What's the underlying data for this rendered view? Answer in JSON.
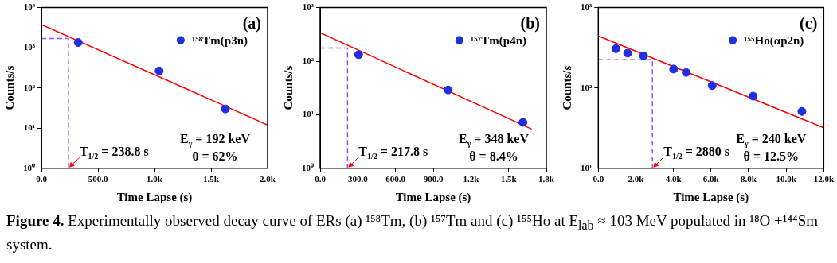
{
  "chart_data": [
    {
      "type": "scatter",
      "title": "(a)",
      "xlabel": "Time Lapse (s)",
      "ylabel": "Counts/s",
      "log": "y",
      "grid": false,
      "legend": "top right",
      "xlim": [
        0,
        2000
      ],
      "xticks": [
        {
          "value": 0,
          "label": "0.0"
        },
        {
          "value": 500,
          "label": "500.0"
        },
        {
          "value": 1000,
          "label": "1.0k"
        },
        {
          "value": 1500,
          "label": "1.5k"
        },
        {
          "value": 2000,
          "label": "2.0k"
        }
      ],
      "ylim": [
        1,
        10000
      ],
      "yticks": [
        {
          "value": 1,
          "label": "10⁰"
        },
        {
          "value": 10,
          "label": "10¹"
        },
        {
          "value": 100,
          "label": "10²"
        },
        {
          "value": 1000,
          "label": "10³"
        },
        {
          "value": 10000,
          "label": "10⁴"
        }
      ],
      "series": [
        {
          "type": "scatter",
          "name": "¹⁵⁸Tm(p3n)",
          "color": "#1f2fe0",
          "marker": "circle",
          "x": [
            325,
            1041,
            1627
          ],
          "values": [
            1350,
            265,
            30
          ]
        },
        {
          "type": "line",
          "color": "#ff0000",
          "line_style": "solid",
          "x": [
            0,
            2000
          ],
          "values": [
            3800,
            12
          ]
        },
        {
          "type": "line",
          "color": "#9b4dff",
          "line_style": "dashed",
          "x": [
            0,
            238.8,
            238.8
          ],
          "values": [
            1700,
            1700,
            1
          ]
        }
      ],
      "annotations": [
        {
          "text": "T$_{1/2}$ = 238.8 s",
          "x": 238.8,
          "y": 1
        },
        "E$_{γ}$ = 192 keV",
        "0 = 62%"
      ]
    },
    {
      "type": "scatter",
      "title": "(b)",
      "xlabel": "Time Lapse (s)",
      "ylabel": "Counts/s",
      "log": "y",
      "grid": false,
      "legend": "top right",
      "xlim": [
        0,
        1800
      ],
      "xticks": [
        {
          "value": 0,
          "label": "0.0"
        },
        {
          "value": 300,
          "label": "300.0"
        },
        {
          "value": 600,
          "label": "600.0"
        },
        {
          "value": 900,
          "label": "900.0"
        },
        {
          "value": 1200,
          "label": "1.2k"
        },
        {
          "value": 1500,
          "label": "1.5k"
        },
        {
          "value": 1800,
          "label": "1.8k"
        }
      ],
      "ylim": [
        1,
        1000
      ],
      "yticks": [
        {
          "value": 1,
          "label": "10⁰"
        },
        {
          "value": 10,
          "label": "10¹"
        },
        {
          "value": 100,
          "label": "10²"
        },
        {
          "value": 1000,
          "label": "10³"
        }
      ],
      "series": [
        {
          "type": "scatter",
          "name": "¹⁵⁷Tm(p4n)",
          "color": "#1f2fe0",
          "marker": "circle",
          "x": [
            306,
            1018,
            1614
          ],
          "values": [
            132,
            29,
            7.2
          ]
        },
        {
          "type": "line",
          "color": "#ff0000",
          "line_style": "solid",
          "x": [
            0,
            1683
          ],
          "values": [
            340,
            5.4
          ]
        },
        {
          "type": "line",
          "color": "#9b4dff",
          "line_style": "dashed",
          "x": [
            0,
            217.8,
            217.8
          ],
          "values": [
            175,
            175,
            1
          ]
        }
      ],
      "annotations": [
        {
          "text": "T$_{1/2}$ = 217.8 s",
          "x": 217.8,
          "y": 1
        },
        "E$_{γ}$ = 348 keV",
        "θ = 8.4%"
      ]
    },
    {
      "type": "scatter",
      "title": "(c)",
      "xlabel": "Time Lapse (s)",
      "ylabel": "Counts/s",
      "log": "y",
      "grid": false,
      "legend": "top right",
      "xlim": [
        0,
        12000
      ],
      "xticks": [
        {
          "value": 0,
          "label": "0.0"
        },
        {
          "value": 2000,
          "label": "2.0k"
        },
        {
          "value": 4000,
          "label": "4.0k"
        },
        {
          "value": 6000,
          "label": "6.0k"
        },
        {
          "value": 8000,
          "label": "8.0k"
        },
        {
          "value": 10000,
          "label": "10.0k"
        },
        {
          "value": 12000,
          "label": "12.0k"
        }
      ],
      "ylim": [
        10,
        1000
      ],
      "yticks": [
        {
          "value": 10,
          "label": "10¹"
        },
        {
          "value": 100,
          "label": "10²"
        },
        {
          "value": 1000,
          "label": "10³"
        }
      ],
      "series": [
        {
          "type": "scatter",
          "name": "¹⁵⁵Ho(αp2n)",
          "color": "#1f2fe0",
          "marker": "circle",
          "x": [
            936,
            1560,
            2406,
            4010,
            4677,
            6060,
            8240,
            10840
          ],
          "values": [
            308,
            271,
            251,
            172,
            156,
            107,
            79,
            51
          ]
        },
        {
          "type": "line",
          "color": "#ff0000",
          "line_style": "solid",
          "x": [
            0,
            12000
          ],
          "values": [
            444,
            32
          ]
        },
        {
          "type": "line",
          "color": "#9b4dff",
          "line_style": "dashed",
          "x": [
            0,
            2880,
            2880
          ],
          "values": [
            224,
            224,
            10
          ]
        }
      ],
      "annotations": [
        {
          "text": "T$_{1/2}$ = 2880 s",
          "x": 2880,
          "y": 10
        },
        "E$_{γ}$ = 240 keV",
        "θ = 12.5%"
      ]
    },
    {
      "type": "other",
      "annotations": [
        "Figure 4. Experimentally observed decay curve of ERs (a) ¹⁵⁸Tm, (b) ¹⁵⁷Tm and (c) ¹⁵⁵Ho at E$_{lab}$ ≈ 103 MeV populated in ¹⁸O +¹⁴⁴Sm system."
      ]
    }
  ]
}
